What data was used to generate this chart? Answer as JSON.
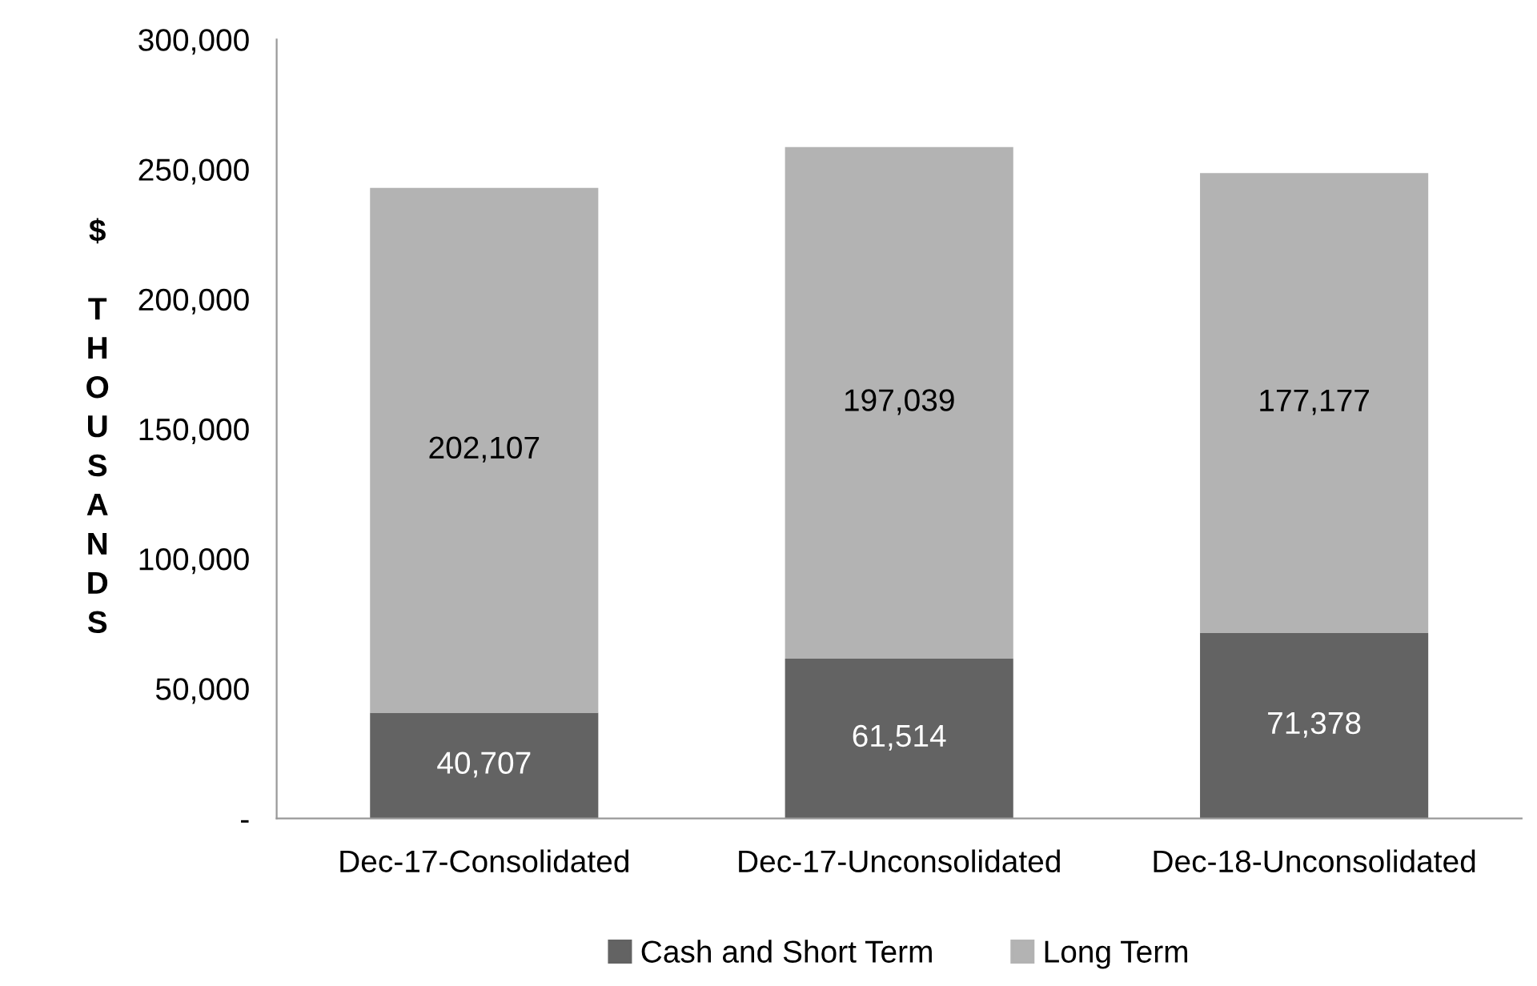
{
  "chart_data": {
    "type": "bar",
    "stacked": true,
    "ylabel": "$ THOUSANDS",
    "categories": [
      "Dec-17-Consolidated",
      "Dec-17-Unconsolidated",
      "Dec-18-Unconsolidated"
    ],
    "series": [
      {
        "name": "Cash and Short Term",
        "color": "#636363",
        "values": [
          40707,
          61514,
          71378
        ],
        "value_labels": [
          "40,707",
          "61,514",
          "71,378"
        ]
      },
      {
        "name": "Long Term",
        "color": "#b3b3b3",
        "values": [
          202107,
          197039,
          177177
        ],
        "value_labels": [
          "202,107",
          "197,039",
          "177,177"
        ]
      }
    ],
    "ylim": [
      0,
      300000
    ],
    "yticks": [
      {
        "value": 0,
        "label": "-"
      },
      {
        "value": 50000,
        "label": "50,000"
      },
      {
        "value": 100000,
        "label": "100,000"
      },
      {
        "value": 150000,
        "label": "150,000"
      },
      {
        "value": 200000,
        "label": "200,000"
      },
      {
        "value": 250000,
        "label": "250,000"
      },
      {
        "value": 300000,
        "label": "300,000"
      }
    ],
    "grid": false,
    "legend": "bottom"
  }
}
